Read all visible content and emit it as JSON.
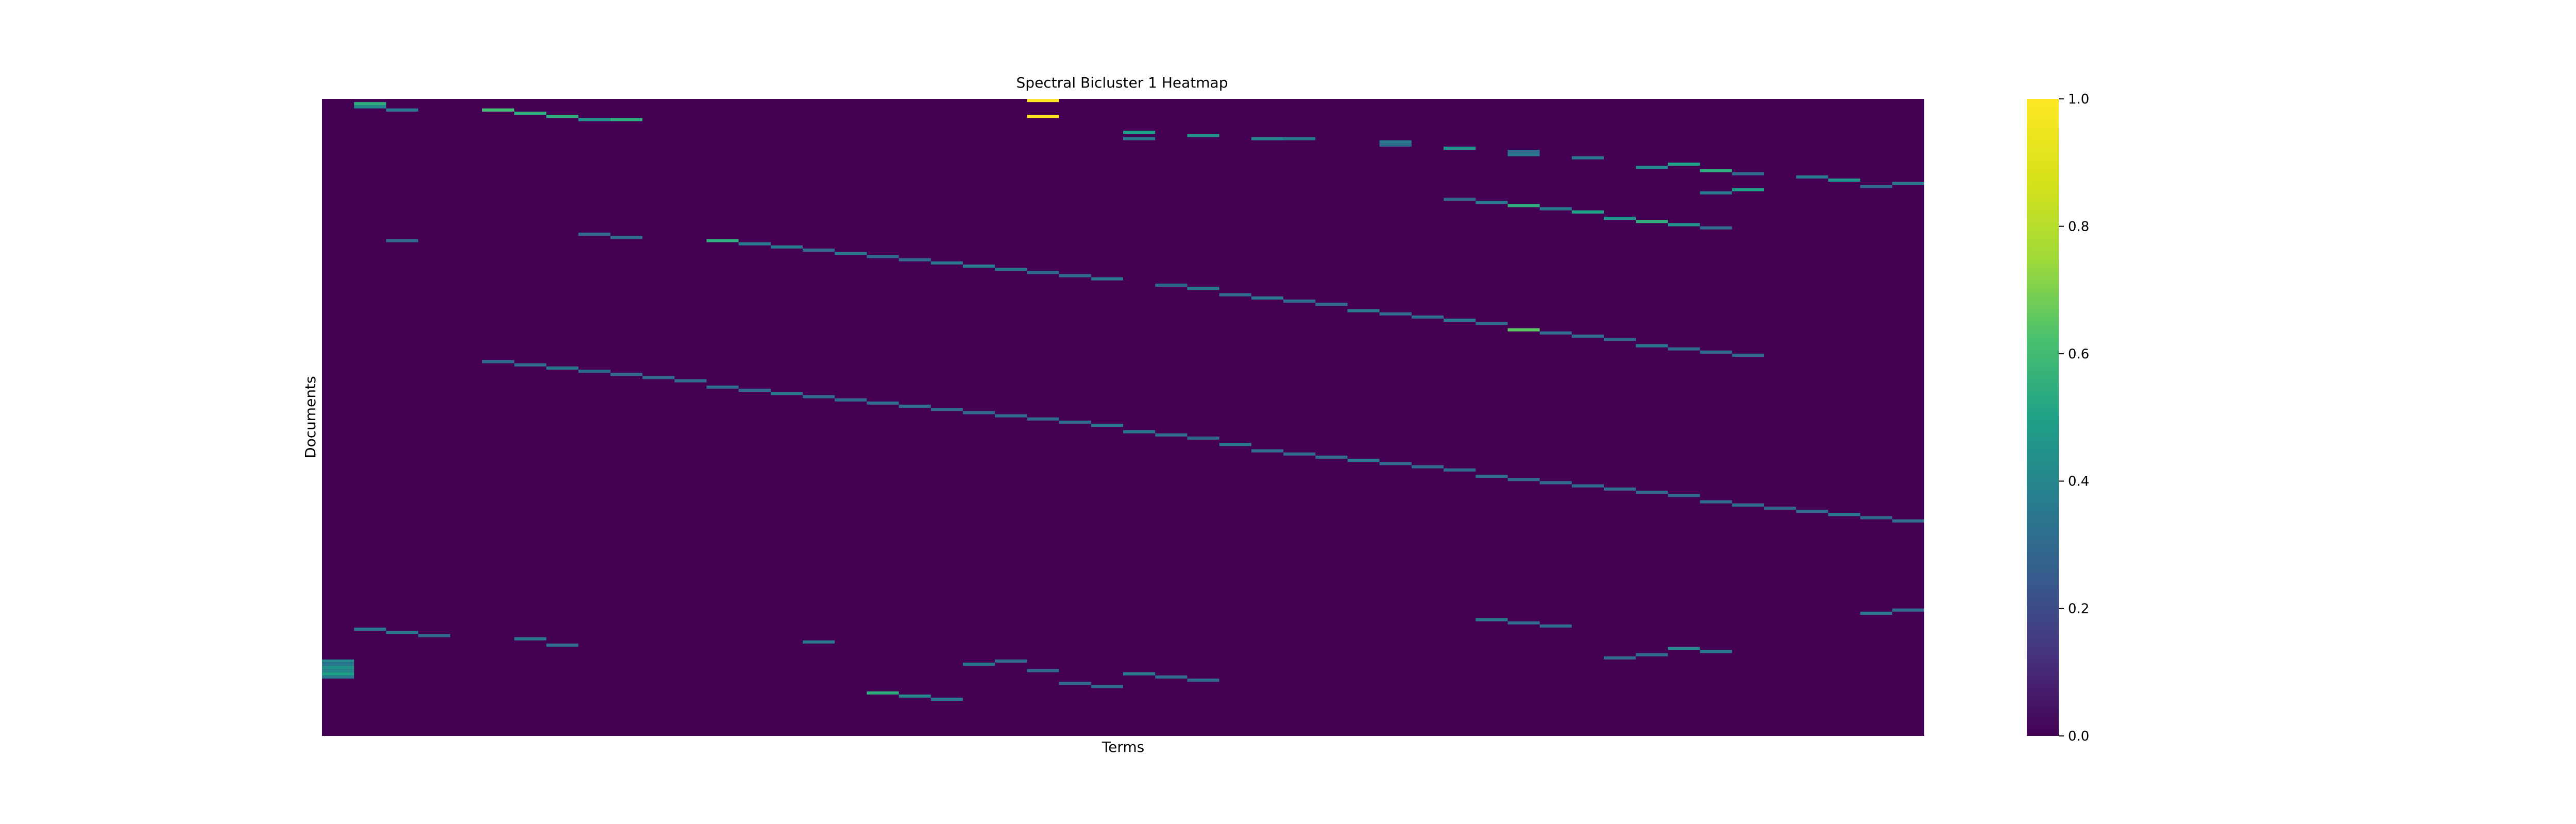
{
  "chart_data": {
    "type": "heatmap",
    "title": "Spectral Bicluster 1 Heatmap",
    "xlabel": "Terms",
    "ylabel": "Documents",
    "n_rows": 200,
    "n_cols": 50,
    "value_range": [
      0,
      1
    ],
    "colormap": "viridis",
    "colorbar": {
      "ticks": [
        0.0,
        0.2,
        0.4,
        0.6,
        0.8,
        1.0
      ],
      "tick_labels": [
        "0.0",
        "0.2",
        "0.4",
        "0.6",
        "0.8",
        "1.0"
      ]
    },
    "background_value": 0.0,
    "cells": [
      [
        0,
        22,
        1.0
      ],
      [
        5,
        22,
        1.0
      ],
      [
        1,
        1,
        0.55
      ],
      [
        2,
        1,
        0.4
      ],
      [
        3,
        5,
        0.6
      ],
      [
        3,
        2,
        0.35
      ],
      [
        4,
        6,
        0.55
      ],
      [
        5,
        7,
        0.55
      ],
      [
        6,
        8,
        0.45
      ],
      [
        6,
        9,
        0.55
      ],
      [
        10,
        25,
        0.5
      ],
      [
        12,
        25,
        0.35
      ],
      [
        11,
        27,
        0.45
      ],
      [
        12,
        29,
        0.4
      ],
      [
        13,
        33,
        0.35
      ],
      [
        14,
        33,
        0.3
      ],
      [
        15,
        35,
        0.45
      ],
      [
        16,
        37,
        0.3
      ],
      [
        17,
        37,
        0.35
      ],
      [
        18,
        39,
        0.35
      ],
      [
        20,
        42,
        0.5
      ],
      [
        21,
        41,
        0.4
      ],
      [
        22,
        43,
        0.55
      ],
      [
        23,
        44,
        0.3
      ],
      [
        24,
        46,
        0.35
      ],
      [
        25,
        47,
        0.45
      ],
      [
        26,
        49,
        0.35
      ],
      [
        27,
        48,
        0.3
      ],
      [
        28,
        44,
        0.5
      ],
      [
        29,
        43,
        0.35
      ],
      [
        12,
        30,
        0.35
      ],
      [
        31,
        35,
        0.3
      ],
      [
        32,
        36,
        0.35
      ],
      [
        33,
        37,
        0.55
      ],
      [
        34,
        38,
        0.35
      ],
      [
        35,
        39,
        0.5
      ],
      [
        37,
        40,
        0.45
      ],
      [
        38,
        41,
        0.55
      ],
      [
        39,
        42,
        0.45
      ],
      [
        40,
        43,
        0.3
      ],
      [
        42,
        8,
        0.3
      ],
      [
        43,
        9,
        0.3
      ],
      [
        44,
        12,
        0.55
      ],
      [
        44,
        2,
        0.3
      ],
      [
        45,
        13,
        0.35
      ],
      [
        46,
        14,
        0.35
      ],
      [
        47,
        15,
        0.3
      ],
      [
        48,
        16,
        0.35
      ],
      [
        49,
        17,
        0.3
      ],
      [
        50,
        18,
        0.3
      ],
      [
        51,
        19,
        0.35
      ],
      [
        52,
        20,
        0.35
      ],
      [
        53,
        21,
        0.35
      ],
      [
        54,
        22,
        0.3
      ],
      [
        55,
        23,
        0.3
      ],
      [
        56,
        24,
        0.35
      ],
      [
        58,
        26,
        0.3
      ],
      [
        59,
        27,
        0.35
      ],
      [
        61,
        28,
        0.3
      ],
      [
        62,
        29,
        0.35
      ],
      [
        63,
        30,
        0.3
      ],
      [
        64,
        31,
        0.3
      ],
      [
        66,
        32,
        0.35
      ],
      [
        67,
        33,
        0.3
      ],
      [
        68,
        34,
        0.3
      ],
      [
        69,
        35,
        0.35
      ],
      [
        70,
        36,
        0.3
      ],
      [
        72,
        37,
        0.65
      ],
      [
        73,
        38,
        0.3
      ],
      [
        74,
        39,
        0.3
      ],
      [
        75,
        40,
        0.3
      ],
      [
        77,
        41,
        0.35
      ],
      [
        78,
        42,
        0.3
      ],
      [
        79,
        43,
        0.3
      ],
      [
        80,
        44,
        0.3
      ],
      [
        82,
        5,
        0.3
      ],
      [
        83,
        6,
        0.3
      ],
      [
        84,
        7,
        0.35
      ],
      [
        85,
        8,
        0.3
      ],
      [
        86,
        9,
        0.3
      ],
      [
        87,
        10,
        0.3
      ],
      [
        88,
        11,
        0.3
      ],
      [
        90,
        12,
        0.3
      ],
      [
        91,
        13,
        0.3
      ],
      [
        92,
        14,
        0.35
      ],
      [
        93,
        15,
        0.3
      ],
      [
        94,
        16,
        0.3
      ],
      [
        95,
        17,
        0.3
      ],
      [
        96,
        18,
        0.3
      ],
      [
        97,
        19,
        0.3
      ],
      [
        98,
        20,
        0.3
      ],
      [
        99,
        21,
        0.3
      ],
      [
        100,
        22,
        0.3
      ],
      [
        101,
        23,
        0.3
      ],
      [
        102,
        24,
        0.35
      ],
      [
        104,
        25,
        0.35
      ],
      [
        105,
        26,
        0.3
      ],
      [
        106,
        27,
        0.3
      ],
      [
        108,
        28,
        0.35
      ],
      [
        110,
        29,
        0.3
      ],
      [
        111,
        30,
        0.3
      ],
      [
        112,
        31,
        0.3
      ],
      [
        113,
        32,
        0.35
      ],
      [
        114,
        33,
        0.3
      ],
      [
        115,
        34,
        0.3
      ],
      [
        116,
        35,
        0.3
      ],
      [
        118,
        36,
        0.3
      ],
      [
        119,
        37,
        0.3
      ],
      [
        120,
        38,
        0.3
      ],
      [
        121,
        39,
        0.3
      ],
      [
        122,
        40,
        0.3
      ],
      [
        123,
        41,
        0.3
      ],
      [
        124,
        42,
        0.3
      ],
      [
        126,
        43,
        0.3
      ],
      [
        127,
        44,
        0.3
      ],
      [
        128,
        45,
        0.3
      ],
      [
        129,
        46,
        0.3
      ],
      [
        130,
        47,
        0.35
      ],
      [
        131,
        48,
        0.3
      ],
      [
        132,
        49,
        0.3
      ],
      [
        176,
        0,
        0.4
      ],
      [
        177,
        0,
        0.35
      ],
      [
        178,
        0,
        0.45
      ],
      [
        179,
        0,
        0.4
      ],
      [
        180,
        0,
        0.5
      ],
      [
        181,
        0,
        0.35
      ],
      [
        186,
        17,
        0.55
      ],
      [
        187,
        18,
        0.4
      ],
      [
        188,
        19,
        0.35
      ],
      [
        180,
        25,
        0.35
      ],
      [
        181,
        26,
        0.3
      ],
      [
        182,
        27,
        0.3
      ],
      [
        177,
        20,
        0.35
      ],
      [
        176,
        21,
        0.3
      ],
      [
        179,
        22,
        0.3
      ],
      [
        183,
        23,
        0.3
      ],
      [
        184,
        24,
        0.3
      ],
      [
        166,
        1,
        0.35
      ],
      [
        167,
        2,
        0.35
      ],
      [
        168,
        3,
        0.3
      ],
      [
        169,
        6,
        0.35
      ],
      [
        170,
        15,
        0.35
      ],
      [
        171,
        7,
        0.3
      ],
      [
        172,
        42,
        0.4
      ],
      [
        173,
        43,
        0.35
      ],
      [
        174,
        41,
        0.3
      ],
      [
        175,
        40,
        0.3
      ],
      [
        163,
        36,
        0.35
      ],
      [
        164,
        37,
        0.3
      ],
      [
        165,
        38,
        0.3
      ],
      [
        160,
        49,
        0.3
      ],
      [
        161,
        48,
        0.35
      ]
    ]
  }
}
